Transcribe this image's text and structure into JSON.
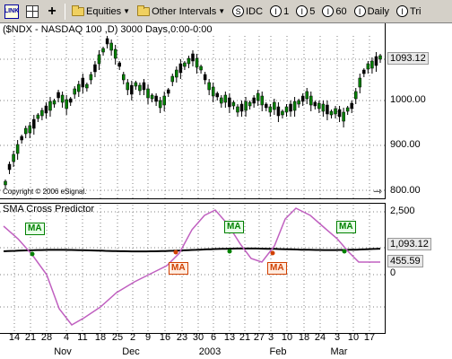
{
  "toolbar": {
    "link_label": "LINK",
    "symbol_list": "Equities",
    "intervals": "Other Intervals",
    "buttons": [
      {
        "icon": "S",
        "label": "IDC"
      },
      {
        "icon": "I",
        "label": "1"
      },
      {
        "icon": "I",
        "label": "5"
      },
      {
        "icon": "I",
        "label": "60"
      },
      {
        "icon": "I",
        "label": "Daily"
      },
      {
        "icon": "I",
        "label": "Tri"
      }
    ]
  },
  "price_pane": {
    "title": "($NDX - NASDAQ 100 ,D) 3000 Days,0:00-0:00",
    "copyright": "Copyright © 2006 eSignal.",
    "last_price": "1093.12",
    "axis_ticks": [
      "1000.00",
      "900.00",
      "800.00"
    ]
  },
  "indicator_pane": {
    "title": "SMA Cross Predictor",
    "top_tick": "2,500",
    "value_black": "1,093.12",
    "value_purple": "455.59",
    "zero_tick": "0",
    "tags": [
      {
        "label": "MA",
        "kind": "green"
      },
      {
        "label": "MA",
        "kind": "red"
      },
      {
        "label": "MA",
        "kind": "green"
      },
      {
        "label": "MA",
        "kind": "red"
      },
      {
        "label": "MA",
        "kind": "green"
      }
    ]
  },
  "x_axis": {
    "days": [
      "14",
      "21",
      "28",
      "4",
      "11",
      "18",
      "25",
      "2",
      "9",
      "16",
      "23",
      "30",
      "6",
      "13",
      "21",
      "27",
      "3",
      "10",
      "18",
      "24",
      "3",
      "10",
      "17"
    ],
    "months": [
      "Nov",
      "Dec",
      "2003",
      "Feb",
      "Mar"
    ]
  },
  "colors": {
    "candle_up": "#008000",
    "candle_down": "#000000",
    "sma_fast": "#c060c0",
    "sma_slow": "#000000",
    "grid": "#808080"
  }
}
